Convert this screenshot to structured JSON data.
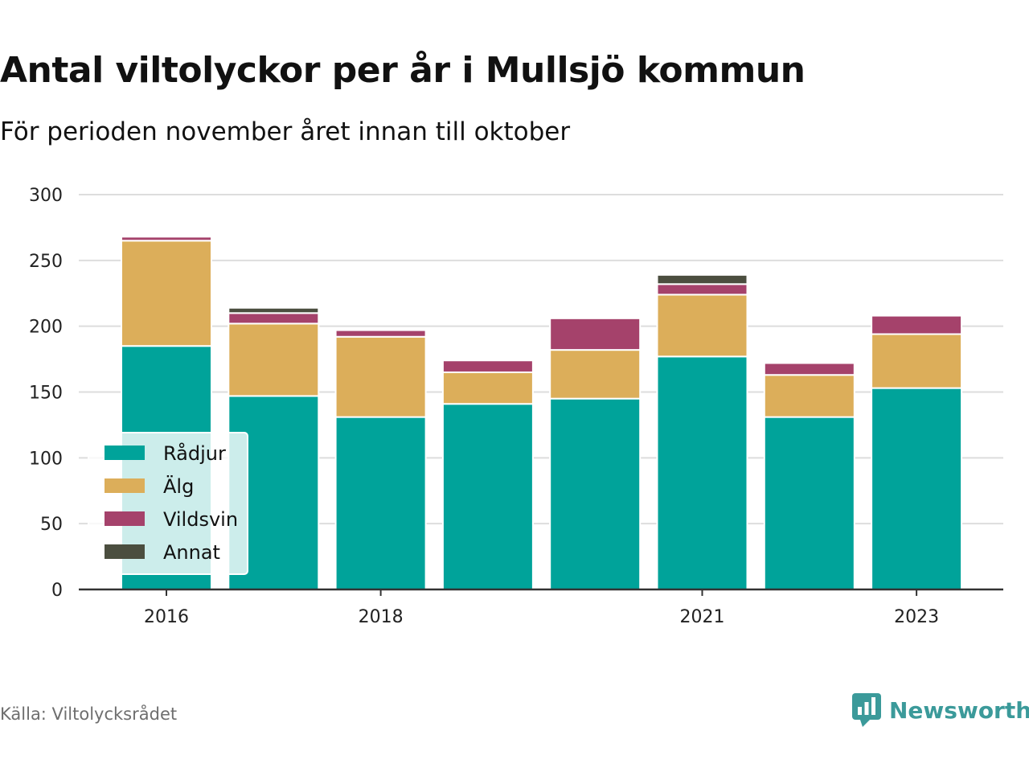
{
  "header": {
    "title": "Antal viltolyckor per år i Mullsjö kommun",
    "subtitle": "För perioden november året innan till oktober"
  },
  "footer": {
    "source": "Källa: Viltolycksrådet",
    "brand": "Newsworthy",
    "brand_icon": "bar-chart-speech-bubble-icon"
  },
  "colors": {
    "Rådjur": "#00a39a",
    "Älg": "#dcae5a",
    "Vildsvin": "#a5426b",
    "Annat": "#4b4e3f",
    "grid": "#dddddd",
    "axis": "#333333",
    "brand": "#3b9a9a"
  },
  "chart_data": {
    "type": "bar",
    "stacked": true,
    "categories": [
      "2016",
      "2017",
      "2018",
      "2019",
      "2020",
      "2021",
      "2022",
      "2023"
    ],
    "x_tick_labels": [
      "2016",
      "",
      "2018",
      "",
      "",
      "2021",
      "",
      "2023"
    ],
    "series": [
      {
        "name": "Rådjur",
        "values": [
          185,
          147,
          131,
          141,
          145,
          177,
          131,
          153
        ]
      },
      {
        "name": "Älg",
        "values": [
          80,
          55,
          61,
          24,
          37,
          47,
          32,
          41
        ]
      },
      {
        "name": "Vildsvin",
        "values": [
          3,
          8,
          5,
          9,
          24,
          8,
          9,
          14
        ]
      },
      {
        "name": "Annat",
        "values": [
          0,
          4,
          0,
          0,
          0,
          7,
          0,
          0
        ]
      }
    ],
    "ylim": [
      0,
      300
    ],
    "yticks": [
      0,
      50,
      100,
      150,
      200,
      250,
      300
    ],
    "grid": true,
    "legend": "bottom-left"
  }
}
